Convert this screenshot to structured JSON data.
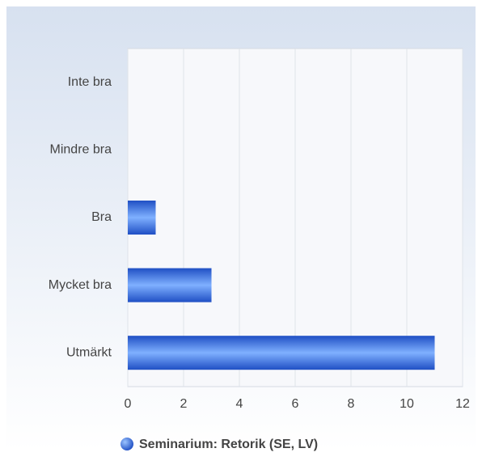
{
  "chart_data": {
    "type": "bar",
    "orientation": "horizontal",
    "categories": [
      "Inte bra",
      "Mindre bra",
      "Bra",
      "Mycket bra",
      "Utmärkt"
    ],
    "series": [
      {
        "name": "Seminarium: Retorik (SE, LV)",
        "color": "#1f4fc4",
        "values": [
          0,
          0,
          1,
          3,
          11
        ]
      }
    ],
    "xlim": [
      0,
      12
    ],
    "xticks": [
      0,
      2,
      4,
      6,
      8,
      10,
      12
    ],
    "grid": true,
    "legend": "bottom"
  }
}
